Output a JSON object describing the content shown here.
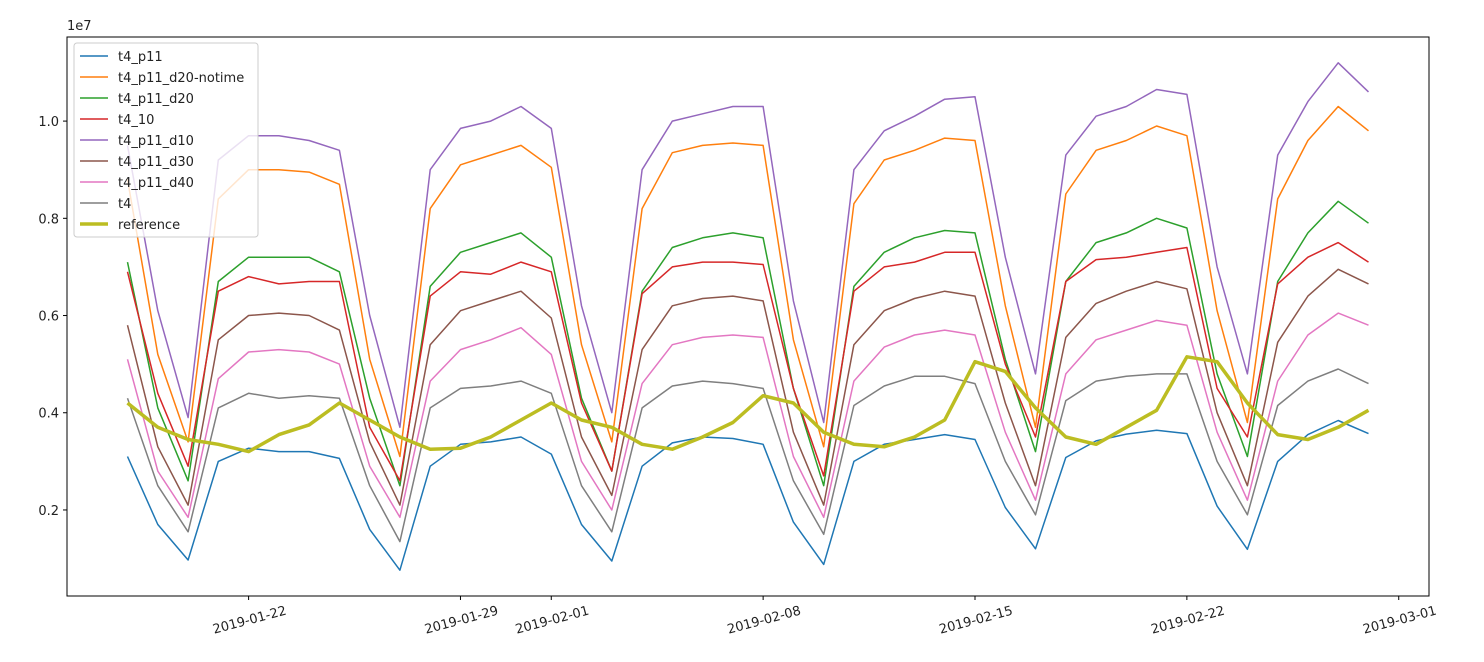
{
  "chart_data": {
    "type": "line",
    "y_offset_label": "1e7",
    "x": [
      "2019-01-18",
      "2019-01-19",
      "2019-01-20",
      "2019-01-21",
      "2019-01-22",
      "2019-01-23",
      "2019-01-24",
      "2019-01-25",
      "2019-01-26",
      "2019-01-27",
      "2019-01-28",
      "2019-01-29",
      "2019-01-30",
      "2019-01-31",
      "2019-02-01",
      "2019-02-02",
      "2019-02-03",
      "2019-02-04",
      "2019-02-05",
      "2019-02-06",
      "2019-02-07",
      "2019-02-08",
      "2019-02-09",
      "2019-02-10",
      "2019-02-11",
      "2019-02-12",
      "2019-02-13",
      "2019-02-14",
      "2019-02-15",
      "2019-02-16",
      "2019-02-17",
      "2019-02-18",
      "2019-02-19",
      "2019-02-20",
      "2019-02-21",
      "2019-02-22",
      "2019-02-23",
      "2019-02-24",
      "2019-02-25",
      "2019-02-26",
      "2019-02-27",
      "2019-02-28"
    ],
    "xlim": [
      "2019-01-16",
      "2019-03-02"
    ],
    "xticks": [
      "2019-01-22",
      "2019-01-29",
      "2019-02-01",
      "2019-02-08",
      "2019-02-15",
      "2019-02-22",
      "2019-03-01"
    ],
    "ylim": [
      0.023,
      1.173
    ],
    "yticks": [
      0.2,
      0.4,
      0.6,
      0.8,
      {
        "value": 1,
        "label": "1.0"
      }
    ],
    "legend": "upper left",
    "series": [
      {
        "name": "t4_p11",
        "color": "#1f77b4",
        "width": 1.5,
        "values": [
          0.31,
          0.17,
          0.097,
          0.3,
          0.327,
          0.32,
          0.32,
          0.306,
          0.16,
          0.076,
          0.29,
          0.335,
          0.34,
          0.35,
          0.315,
          0.17,
          0.095,
          0.29,
          0.338,
          0.35,
          0.347,
          0.335,
          0.175,
          0.088,
          0.3,
          0.335,
          0.345,
          0.355,
          0.345,
          0.205,
          0.12,
          0.308,
          0.342,
          0.356,
          0.364,
          0.357,
          0.208,
          0.119,
          0.3,
          0.355,
          0.384,
          0.357
        ]
      },
      {
        "name": "t4_p11_d20-notime",
        "color": "#ff7f0e",
        "width": 1.5,
        "values": [
          0.88,
          0.52,
          0.34,
          0.84,
          0.9,
          0.9,
          0.895,
          0.87,
          0.51,
          0.31,
          0.82,
          0.91,
          0.93,
          0.95,
          0.905,
          0.54,
          0.34,
          0.82,
          0.935,
          0.95,
          0.955,
          0.95,
          0.55,
          0.33,
          0.83,
          0.92,
          0.94,
          0.965,
          0.96,
          0.62,
          0.37,
          0.85,
          0.94,
          0.96,
          0.99,
          0.97,
          0.61,
          0.38,
          0.84,
          0.96,
          1.03,
          0.98
        ]
      },
      {
        "name": "t4_p11_d20",
        "color": "#2ca02c",
        "width": 1.5,
        "values": [
          0.71,
          0.41,
          0.26,
          0.67,
          0.72,
          0.72,
          0.72,
          0.69,
          0.43,
          0.25,
          0.66,
          0.73,
          0.75,
          0.77,
          0.72,
          0.43,
          0.28,
          0.65,
          0.74,
          0.76,
          0.77,
          0.76,
          0.45,
          0.25,
          0.66,
          0.73,
          0.76,
          0.775,
          0.77,
          0.51,
          0.32,
          0.67,
          0.75,
          0.77,
          0.8,
          0.78,
          0.48,
          0.31,
          0.67,
          0.77,
          0.835,
          0.79
        ]
      },
      {
        "name": "t4_10",
        "color": "#d62728",
        "width": 1.5,
        "values": [
          0.69,
          0.44,
          0.29,
          0.65,
          0.68,
          0.665,
          0.67,
          0.67,
          0.37,
          0.26,
          0.64,
          0.69,
          0.685,
          0.71,
          0.69,
          0.42,
          0.28,
          0.645,
          0.7,
          0.71,
          0.71,
          0.705,
          0.45,
          0.27,
          0.65,
          0.7,
          0.71,
          0.73,
          0.73,
          0.5,
          0.35,
          0.67,
          0.715,
          0.72,
          0.73,
          0.74,
          0.45,
          0.35,
          0.665,
          0.72,
          0.75,
          0.71
        ]
      },
      {
        "name": "t4_p11_d10",
        "color": "#9467bd",
        "width": 1.5,
        "values": [
          0.95,
          0.61,
          0.39,
          0.92,
          0.97,
          0.97,
          0.96,
          0.94,
          0.6,
          0.37,
          0.9,
          0.985,
          1.0,
          1.03,
          0.985,
          0.62,
          0.4,
          0.9,
          1.0,
          1.015,
          1.03,
          1.03,
          0.63,
          0.38,
          0.9,
          0.98,
          1.01,
          1.045,
          1.05,
          0.72,
          0.48,
          0.93,
          1.01,
          1.03,
          1.065,
          1.055,
          0.7,
          0.48,
          0.93,
          1.04,
          1.12,
          1.06
        ]
      },
      {
        "name": "t4_p11_d30",
        "color": "#8c564b",
        "width": 1.5,
        "values": [
          0.58,
          0.33,
          0.21,
          0.55,
          0.6,
          0.605,
          0.6,
          0.57,
          0.34,
          0.21,
          0.54,
          0.61,
          0.63,
          0.65,
          0.595,
          0.35,
          0.23,
          0.53,
          0.62,
          0.635,
          0.64,
          0.63,
          0.36,
          0.21,
          0.54,
          0.61,
          0.635,
          0.65,
          0.64,
          0.42,
          0.25,
          0.555,
          0.625,
          0.65,
          0.67,
          0.655,
          0.4,
          0.25,
          0.545,
          0.64,
          0.695,
          0.665
        ]
      },
      {
        "name": "t4_p11_d40",
        "color": "#e377c2",
        "width": 1.5,
        "values": [
          0.51,
          0.28,
          0.185,
          0.47,
          0.525,
          0.53,
          0.525,
          0.5,
          0.29,
          0.185,
          0.465,
          0.53,
          0.55,
          0.575,
          0.52,
          0.3,
          0.2,
          0.46,
          0.54,
          0.555,
          0.56,
          0.555,
          0.31,
          0.185,
          0.465,
          0.535,
          0.56,
          0.57,
          0.56,
          0.36,
          0.22,
          0.48,
          0.55,
          0.57,
          0.59,
          0.58,
          0.36,
          0.22,
          0.465,
          0.56,
          0.605,
          0.58
        ]
      },
      {
        "name": "t4",
        "color": "#7f7f7f",
        "width": 1.5,
        "values": [
          0.43,
          0.25,
          0.155,
          0.41,
          0.44,
          0.43,
          0.435,
          0.43,
          0.25,
          0.135,
          0.41,
          0.45,
          0.455,
          0.465,
          0.44,
          0.25,
          0.155,
          0.41,
          0.455,
          0.465,
          0.46,
          0.45,
          0.26,
          0.15,
          0.415,
          0.455,
          0.475,
          0.475,
          0.46,
          0.3,
          0.19,
          0.425,
          0.465,
          0.475,
          0.48,
          0.48,
          0.3,
          0.19,
          0.415,
          0.465,
          0.49,
          0.46
        ]
      },
      {
        "name": "reference",
        "color": "#bcbd22",
        "width": 3.5,
        "values": [
          0.42,
          0.37,
          0.345,
          0.335,
          0.32,
          0.355,
          0.375,
          0.42,
          0.385,
          0.35,
          0.325,
          0.327,
          0.35,
          0.385,
          0.42,
          0.385,
          0.37,
          0.335,
          0.325,
          0.35,
          0.38,
          0.435,
          0.42,
          0.36,
          0.335,
          0.33,
          0.35,
          0.385,
          0.505,
          0.485,
          0.41,
          0.35,
          0.335,
          0.37,
          0.405,
          0.515,
          0.505,
          0.42,
          0.355,
          0.345,
          0.37,
          0.405
        ]
      }
    ]
  }
}
